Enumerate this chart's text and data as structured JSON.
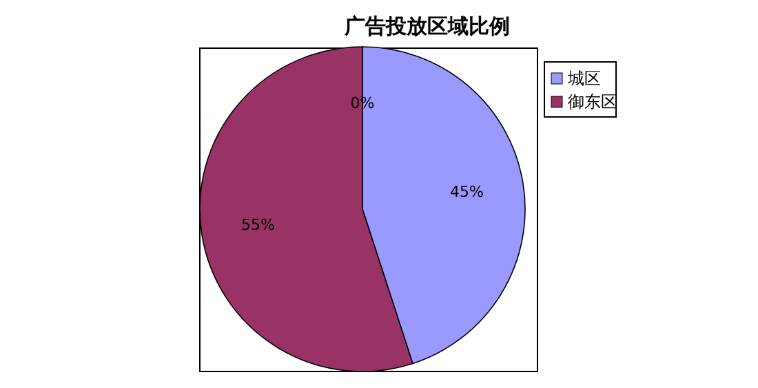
{
  "chart_data": {
    "type": "pie",
    "title": "广告投放区域比例",
    "categories": [
      "城区",
      "御东区",
      null
    ],
    "values": [
      45,
      55,
      0
    ],
    "colors": [
      "#9999ff",
      "#993366",
      "#ffffcc"
    ],
    "value_labels": [
      "45%",
      "55%",
      "0%"
    ],
    "legend": "right"
  }
}
